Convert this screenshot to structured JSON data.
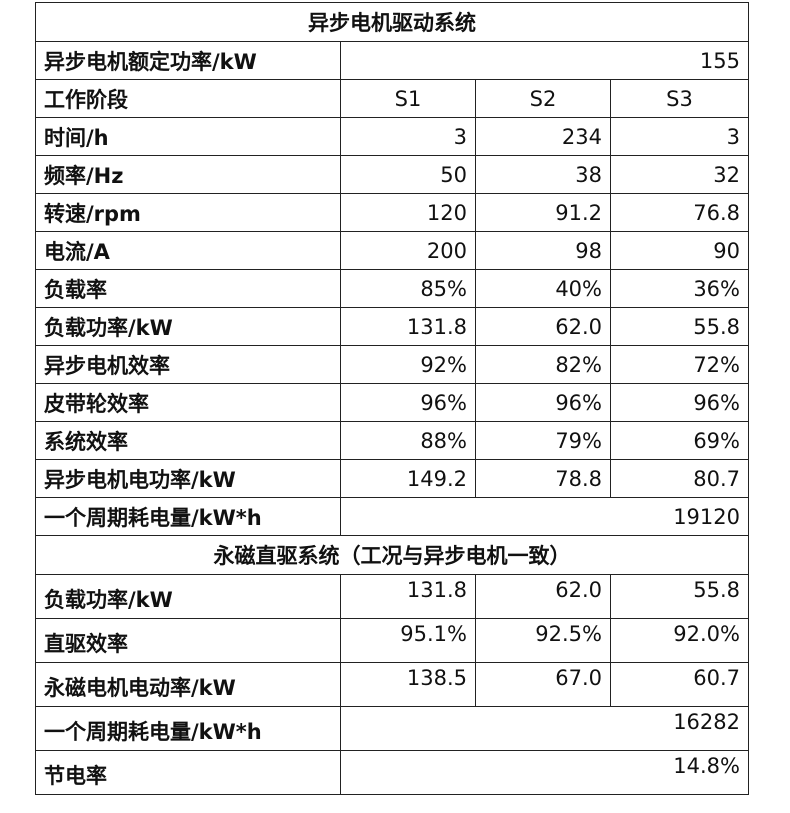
{
  "section1": {
    "title": "异步电机驱动系统",
    "rated_power": {
      "label": "异步电机额定功率/kW",
      "value": "155"
    },
    "stages": {
      "label": "工作阶段",
      "values": [
        "S1",
        "S2",
        "S3"
      ]
    },
    "rows": [
      {
        "label": "时间/h",
        "values": [
          "3",
          "234",
          "3"
        ]
      },
      {
        "label": "频率/Hz",
        "values": [
          "50",
          "38",
          "32"
        ]
      },
      {
        "label": "转速/rpm",
        "values": [
          "120",
          "91.2",
          "76.8"
        ]
      },
      {
        "label": "电流/A",
        "values": [
          "200",
          "98",
          "90"
        ]
      },
      {
        "label": "负载率",
        "values": [
          "85%",
          "40%",
          "36%"
        ]
      },
      {
        "label": "负载功率/kW",
        "values": [
          "131.8",
          "62.0",
          "55.8"
        ]
      },
      {
        "label": "异步电机效率",
        "values": [
          "92%",
          "82%",
          "72%"
        ]
      },
      {
        "label": "皮带轮效率",
        "values": [
          "96%",
          "96%",
          "96%"
        ]
      },
      {
        "label": "系统效率",
        "values": [
          "88%",
          "79%",
          "69%"
        ]
      },
      {
        "label": "异步电机电功率/kW",
        "values": [
          "149.2",
          "78.8",
          "80.7"
        ]
      }
    ],
    "cycle_energy": {
      "label": "一个周期耗电量/kW*h",
      "value": "19120"
    }
  },
  "section2": {
    "title": "永磁直驱系统（工况与异步电机一致）",
    "rows": [
      {
        "label": "负载功率/kW",
        "values": [
          "131.8",
          "62.0",
          "55.8"
        ]
      },
      {
        "label": "直驱效率",
        "values": [
          "95.1%",
          "92.5%",
          "92.0%"
        ]
      },
      {
        "label": "永磁电机电动率/kW",
        "values": [
          "138.5",
          "67.0",
          "60.7"
        ]
      }
    ],
    "cycle_energy": {
      "label": "一个周期耗电量/kW*h",
      "value": "16282"
    },
    "saving_rate": {
      "label": "节电率",
      "value": "14.8%"
    }
  }
}
